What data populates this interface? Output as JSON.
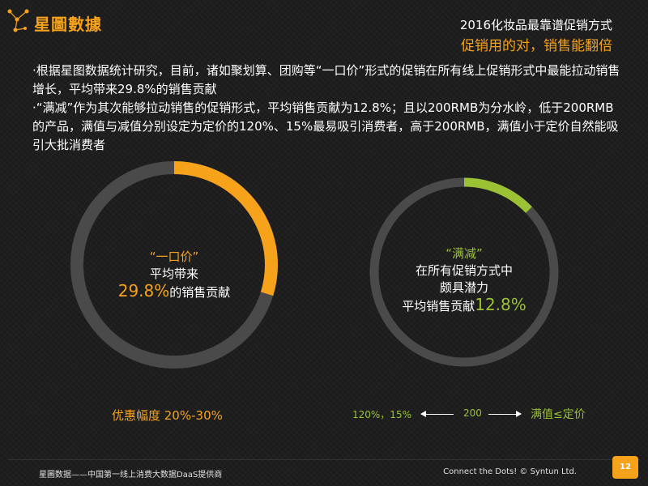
{
  "brand": {
    "logo_text": "星圖數據",
    "accent_color": "#f7a21b",
    "icon": "constellation-icon"
  },
  "header": {
    "title": "2016化妆品最靠谱促销方式",
    "subtitle": "促销用的对，销售能翻倍"
  },
  "body": {
    "paragraph_1": "·根据星图数据统计研究，目前，诸如聚划算、团购等“一口价”形式的促销在所有线上促销形式中最能拉动销售增长，平均带来29.8%的销售贡献",
    "paragraph_2": "·“满减”作为其次能够拉动销售的促销形式，平均销售贡献为12.8%；且以200RMB为分水岭，低于200RMB的产品，满值与减值分别设定为定价的120%、15%最易吸引消费者，高于200RMB，满值小于定价自然能吸引大批消费者"
  },
  "chart_data": [
    {
      "type": "pie",
      "value_percent": 29.8,
      "color": "#f7a21b",
      "track_color": "#4a4a4a",
      "labels": {
        "name": "“一口价”",
        "line2": "平均带来",
        "value": "29.8%",
        "suffix": "的销售贡献"
      }
    },
    {
      "type": "pie",
      "value_percent": 12.8,
      "color": "#9bc234",
      "track_color": "#4a4a4a",
      "labels": {
        "name": "“满减”",
        "line2": "在所有促销方式中",
        "line3": "颇具潜力",
        "prefix": "平均销售贡献",
        "value": "12.8%"
      }
    }
  ],
  "captions": {
    "discount": "优惠幅度 20%-30%",
    "ratio_left": "120%，15%",
    "threshold": "200",
    "ratio_right": "满值≤定价"
  },
  "footer": {
    "left": "星圖数据——中国第一线上消费大数据DaaS提供商",
    "right": "Connect the Dots! © Syntun Ltd.",
    "page_number": "12"
  }
}
